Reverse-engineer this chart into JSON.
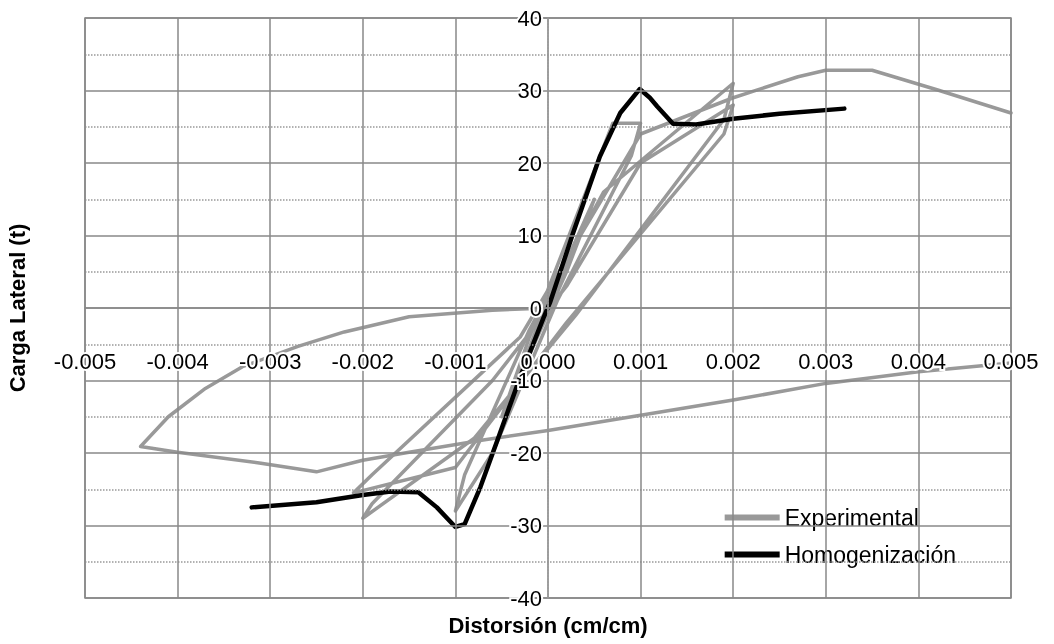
{
  "chart_data": {
    "type": "line",
    "xlabel": "Distorsión (cm/cm)",
    "ylabel": "Carga Lateral (t)",
    "xlim": [
      -0.005,
      0.005
    ],
    "xticks": [
      -0.005,
      -0.004,
      -0.003,
      -0.002,
      -0.001,
      {
        "value": 0,
        "label": "0.000"
      },
      0.001,
      0.002,
      0.003,
      0.004,
      0.005
    ],
    "ylim": [
      -40,
      40
    ],
    "yticks": [
      -40,
      -30,
      -20,
      -10,
      0,
      10,
      20,
      30,
      40
    ],
    "grid": true,
    "legend": "bottom right",
    "marker": "none",
    "line_style": "solid",
    "series": [
      {
        "name": "Experimental",
        "color": "#999999",
        "x": [
          0,
          0.0003,
          0.0001,
          -0.0003,
          -0.0001,
          0.0005,
          0.0002,
          -0.0005,
          -0.0002,
          0.0007,
          0.001,
          0.0009,
          0.0001,
          -0.0006,
          -0.001,
          -0.0009,
          -0.0002,
          0.0006,
          0.002,
          0.0019,
          0.0003,
          -0.0008,
          -0.002,
          -0.0019,
          -0.0006,
          0.0002,
          0.001,
          0.002,
          0.0019,
          0.0002,
          -0.001,
          -0.0021,
          -0.0019,
          -0.0003,
          0.001,
          0.002,
          0.0027,
          0.003,
          0.0035,
          0.0042,
          0.005
        ],
        "values": [
          0,
          9,
          2,
          -9,
          -2,
          15,
          5,
          -15,
          -4,
          25.5,
          25.5,
          21,
          1,
          -20,
          -28,
          -23,
          -3,
          16,
          31,
          26,
          -1,
          -18,
          -29,
          -27,
          -10,
          3,
          20,
          28,
          24,
          -2,
          -22,
          -25.5,
          -23,
          -4,
          24,
          29,
          31.9,
          32.8,
          32.8,
          30.1,
          26.9
        ]
      },
      {
        "color": "#999999",
        "x": [
          0.005,
          0.004,
          0.003,
          0.002,
          0.001,
          0,
          -0.0007,
          -0.0015,
          -0.002,
          -0.0025,
          -0.0031,
          -0.004,
          -0.0044,
          -0.0041,
          -0.0037,
          -0.0033,
          -0.0027,
          -0.0022,
          -0.0015,
          -0.0006,
          0
        ],
        "values": [
          -7.6,
          -8.8,
          -10.4,
          -12.7,
          -14.8,
          -16.9,
          -18.2,
          -19.9,
          -21,
          -22.6,
          -21.4,
          -19.9,
          -19.1,
          -15,
          -11.1,
          -8.1,
          -5.3,
          -3.3,
          -1.2,
          -0.3,
          0
        ]
      },
      {
        "name": "Homogenización",
        "color": "#000000",
        "x": [
          -0.0032,
          -0.0025,
          -0.002,
          -0.0017,
          -0.0014,
          -0.0012,
          -0.001,
          -0.0009,
          -0.00073,
          -0.00052,
          -0.0003,
          -5e-05,
          2e-05,
          0.00027,
          0.00056,
          0.00078,
          0.00099,
          0.0011,
          0.00118,
          0.00135,
          0.0016,
          0.002,
          0.0025,
          0.0032
        ],
        "values": [
          -27.5,
          -26.8,
          -25.8,
          -25.3,
          -25.4,
          -27.5,
          -30.2,
          -29.8,
          -24.7,
          -17.3,
          -9.5,
          -1.4,
          0.7,
          10.3,
          20.9,
          26.9,
          30.2,
          29,
          27.8,
          25.4,
          25.3,
          26.1,
          26.8,
          27.5
        ]
      }
    ]
  }
}
